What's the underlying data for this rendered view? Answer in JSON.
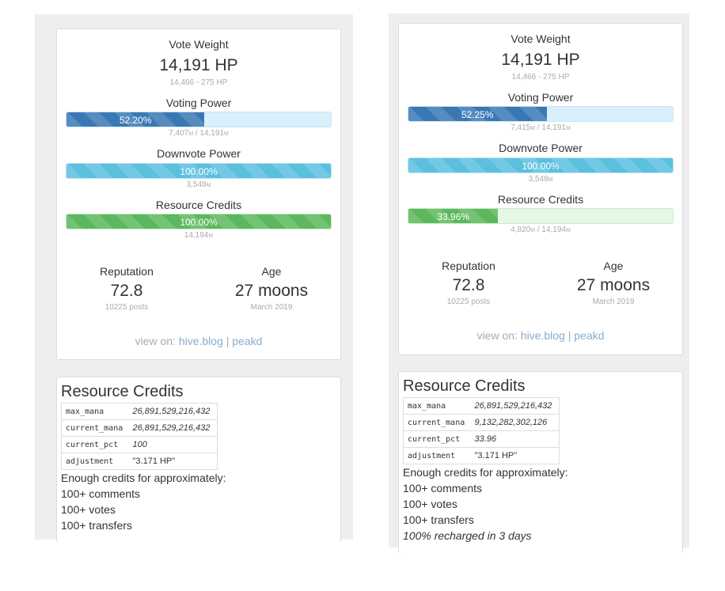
{
  "panels": [
    {
      "vote_weight": {
        "label": "Vote Weight",
        "value": "14,191 HP",
        "detail": "14,466 - 275 HP"
      },
      "voting_power": {
        "label": "Voting Power",
        "pct_text": "52.20%",
        "fill_pct": 52.2,
        "mana": "7,407",
        "max": "14,191",
        "unit": "M"
      },
      "downvote_power": {
        "label": "Downvote Power",
        "pct_text": "100.00%",
        "fill_pct": 100,
        "mana": "3,548",
        "unit": "M"
      },
      "resource_credits": {
        "label": "Resource Credits",
        "pct_text": "100.00%",
        "fill_pct": 100,
        "mana": "14,194",
        "unit": "M"
      },
      "reputation": {
        "label": "Reputation",
        "value": "72.8",
        "detail": "10225 posts"
      },
      "age": {
        "label": "Age",
        "value": "27 moons",
        "detail": "March 2019"
      },
      "view_on": {
        "prefix": "view on:",
        "link1": "hive.blog",
        "sep": "|",
        "link2": "peakd"
      },
      "rc_section": {
        "title": "Resource Credits",
        "rows": [
          {
            "key": "max_mana",
            "value": "26,891,529,216,432"
          },
          {
            "key": "current_mana",
            "value": "26,891,529,216,432"
          },
          {
            "key": "current_pct",
            "value": "100"
          },
          {
            "key": "adjustment",
            "value": "\"3.171 HP\""
          }
        ],
        "enough": "Enough credits for approximately:",
        "comments": "100+ comments",
        "votes": "100+ votes",
        "transfers": "100+ transfers"
      }
    },
    {
      "vote_weight": {
        "label": "Vote Weight",
        "value": "14,191 HP",
        "detail": "14,466 - 275 HP"
      },
      "voting_power": {
        "label": "Voting Power",
        "pct_text": "52.25%",
        "fill_pct": 52.25,
        "mana": "7,415",
        "max": "14,191",
        "unit": "M"
      },
      "downvote_power": {
        "label": "Downvote Power",
        "pct_text": "100.00%",
        "fill_pct": 100,
        "mana": "3,548",
        "unit": "M"
      },
      "resource_credits": {
        "label": "Resource Credits",
        "pct_text": "33.96%",
        "fill_pct": 33.96,
        "mana": "4,820",
        "max": "14,194",
        "unit": "M"
      },
      "reputation": {
        "label": "Reputation",
        "value": "72.8",
        "detail": "10225 posts"
      },
      "age": {
        "label": "Age",
        "value": "27 moons",
        "detail": "March 2019"
      },
      "view_on": {
        "prefix": "view on:",
        "link1": "hive.blog",
        "sep": "|",
        "link2": "peakd"
      },
      "rc_section": {
        "title": "Resource Credits",
        "rows": [
          {
            "key": "max_mana",
            "value": "26,891,529,216,432"
          },
          {
            "key": "current_mana",
            "value": "9,132,282,302,126"
          },
          {
            "key": "current_pct",
            "value": "33.96"
          },
          {
            "key": "adjustment",
            "value": "\"3.171 HP\""
          }
        ],
        "enough": "Enough credits for approximately:",
        "comments": "100+ comments",
        "votes": "100+ votes",
        "transfers": "100+ transfers",
        "recharge": "100% recharged in 3 days"
      }
    }
  ]
}
